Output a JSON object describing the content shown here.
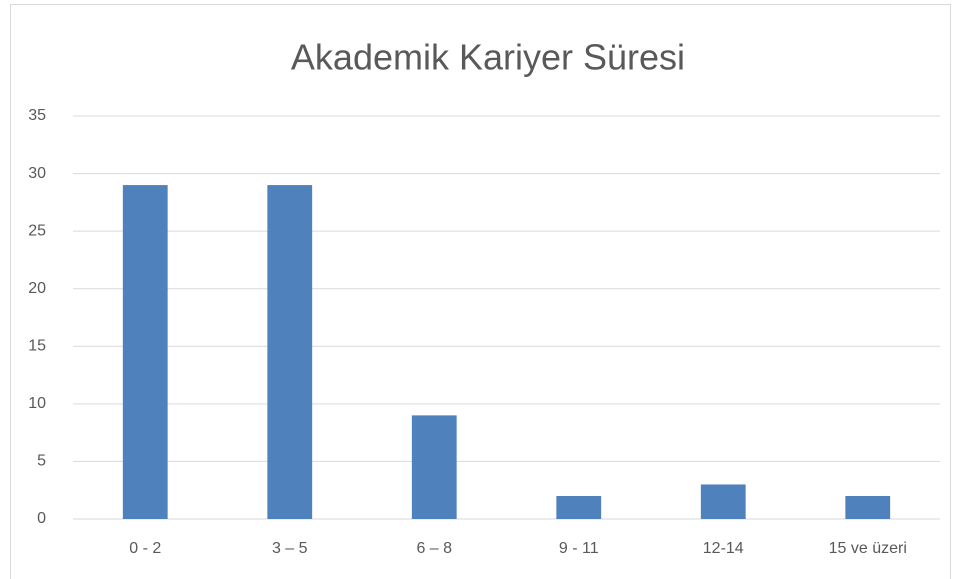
{
  "chart_data": {
    "type": "bar",
    "title": "Akademik Kariyer Süresi",
    "categories": [
      "0 - 2",
      "3 – 5",
      "6 – 8",
      "9 - 11",
      "12-14",
      "15 ve üzeri"
    ],
    "values": [
      29,
      29,
      9,
      2,
      3,
      2
    ],
    "color": "#4f81bd",
    "ylim": [
      0,
      35
    ],
    "yticks": [
      0,
      5,
      10,
      15,
      20,
      25,
      30,
      35
    ],
    "grid": true
  }
}
